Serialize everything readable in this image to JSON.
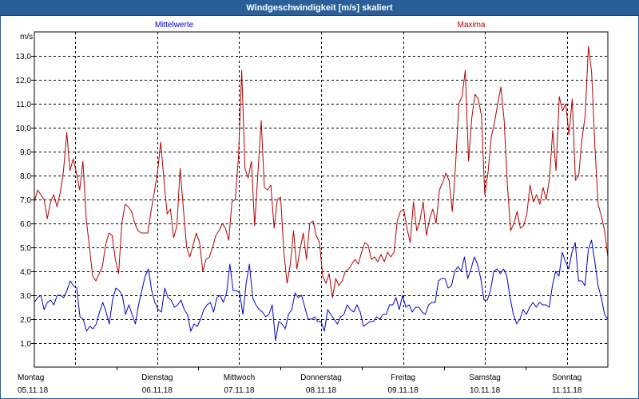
{
  "window": {
    "title": "Windgeschwindigkeit [m/s] skaliert"
  },
  "chart_data": {
    "type": "line",
    "ylabel": "m/s",
    "ylim": [
      0,
      14
    ],
    "yticks": [
      1.0,
      2.0,
      3.0,
      4.0,
      5.0,
      6.0,
      7.0,
      8.0,
      9.0,
      10.0,
      11.0,
      12.0,
      13.0
    ],
    "ytick_labels": [
      "1,0",
      "2,0",
      "3,0",
      "4,0",
      "5,0",
      "6,0",
      "7,0",
      "8,0",
      "9,0",
      "10,0",
      "11,0",
      "12,0",
      "13,0"
    ],
    "day_labels": [
      {
        "day": "Montag",
        "date": "05.11.18"
      },
      {
        "day": "Dienstag",
        "date": "06.11.18"
      },
      {
        "day": "Mittwoch",
        "date": "07.11.18"
      },
      {
        "day": "Donnerstag",
        "date": "08.11.18"
      },
      {
        "day": "Freitag",
        "date": "09.11.18"
      },
      {
        "day": "Samstag",
        "date": "10.11.18"
      },
      {
        "day": "Sonntag",
        "date": "11.11.18"
      }
    ],
    "grid": true,
    "legend_placement": "top",
    "series": [
      {
        "name": "Mittelwerte",
        "color": "#0000cc",
        "values": [
          2.7,
          2.9,
          3.0,
          2.4,
          2.7,
          2.8,
          2.6,
          3.0,
          3.0,
          2.9,
          3.2,
          3.6,
          3.4,
          3.3,
          2.1,
          2.0,
          1.5,
          1.7,
          1.6,
          1.8,
          2.3,
          2.7,
          2.3,
          1.8,
          2.8,
          3.3,
          3.2,
          3.0,
          2.2,
          2.6,
          2.2,
          1.8,
          2.6,
          3.2,
          3.8,
          4.1,
          3.2,
          2.7,
          2.4,
          2.3,
          3.3,
          2.9,
          2.8,
          2.5,
          2.6,
          2.8,
          2.4,
          2.2,
          1.5,
          1.8,
          1.7,
          2.0,
          2.4,
          2.6,
          2.7,
          2.3,
          2.9,
          3.0,
          2.7,
          3.1,
          4.3,
          3.2,
          3.2,
          3.1,
          2.2,
          3.5,
          4.3,
          2.9,
          2.6,
          2.4,
          2.3,
          2.1,
          2.2,
          2.6,
          1.1,
          1.9,
          1.8,
          1.6,
          2.2,
          2.4,
          3.1,
          2.9,
          3.0,
          2.5,
          2.0,
          2.0,
          2.1,
          1.9,
          1.9,
          1.5,
          2.4,
          2.2,
          2.0,
          1.8,
          2.1,
          2.2,
          2.6,
          2.4,
          2.3,
          2.6,
          2.3,
          1.7,
          1.8,
          1.9,
          1.9,
          2.1,
          2.0,
          2.2,
          2.2,
          2.6,
          2.6,
          2.9,
          2.4,
          3.0,
          2.5,
          2.6,
          2.3,
          2.5,
          2.5,
          2.3,
          2.2,
          2.6,
          2.7,
          2.7,
          3.6,
          3.7,
          3.7,
          3.3,
          3.4,
          4.0,
          4.2,
          4.0,
          4.6,
          3.7,
          4.1,
          4.6,
          4.3,
          3.7,
          2.8,
          2.8,
          3.2,
          4.0,
          4.1,
          3.9,
          4.1,
          3.8,
          2.9,
          2.2,
          1.8,
          2.0,
          2.4,
          2.2,
          2.5,
          2.7,
          2.5,
          2.7,
          2.6,
          2.6,
          2.5,
          3.4,
          4.0,
          3.8,
          4.8,
          4.4,
          4.1,
          4.8,
          5.2,
          3.6,
          3.6,
          3.4,
          4.9,
          5.3,
          4.4,
          3.4,
          2.9,
          2.2,
          2.0
        ]
      },
      {
        "name": "Maxima",
        "color": "#b40000",
        "values": [
          6.9,
          7.4,
          7.2,
          7.0,
          6.2,
          6.9,
          7.2,
          6.7,
          7.3,
          8.2,
          9.8,
          8.2,
          8.7,
          8.1,
          7.4,
          8.6,
          6.2,
          5.0,
          3.8,
          3.6,
          3.9,
          4.2,
          5.1,
          5.6,
          5.5,
          4.5,
          3.9,
          6.0,
          6.8,
          6.7,
          6.5,
          6.0,
          5.7,
          5.6,
          5.6,
          5.6,
          6.5,
          7.3,
          8.1,
          9.4,
          7.8,
          6.4,
          6.6,
          5.4,
          5.9,
          8.3,
          6.6,
          5.0,
          4.6,
          5.1,
          5.6,
          5.2,
          4.0,
          4.5,
          4.6,
          5.0,
          5.5,
          5.7,
          6.0,
          5.8,
          5.3,
          6.9,
          7.0,
          8.8,
          12.4,
          8.3,
          7.9,
          8.6,
          5.9,
          8.1,
          10.3,
          7.5,
          7.4,
          7.6,
          5.8,
          7.0,
          7.1,
          4.8,
          3.5,
          4.3,
          5.7,
          4.1,
          4.9,
          5.6,
          4.5,
          6.0,
          6.1,
          5.5,
          5.2,
          3.8,
          3.5,
          3.9,
          2.9,
          3.7,
          3.4,
          3.6,
          4.0,
          4.1,
          4.3,
          4.5,
          4.3,
          4.8,
          5.2,
          5.1,
          4.5,
          4.6,
          4.4,
          4.7,
          4.4,
          4.8,
          4.6,
          4.8,
          6.1,
          6.5,
          6.6,
          5.8,
          5.2,
          6.9,
          5.7,
          6.1,
          6.9,
          5.5,
          6.2,
          6.6,
          6.0,
          7.4,
          7.7,
          8.1,
          7.8,
          6.5,
          8.4,
          11.0,
          11.3,
          12.4,
          8.6,
          10.4,
          11.4,
          11.2,
          10.5,
          7.2,
          8.1,
          9.6,
          10.2,
          11.0,
          11.7,
          10.3,
          7.6,
          5.7,
          6.0,
          6.5,
          5.8,
          5.9,
          6.4,
          7.6,
          6.9,
          7.2,
          6.8,
          7.5,
          7.0,
          7.9,
          9.9,
          8.2,
          11.3,
          10.7,
          11.0,
          9.7,
          11.2,
          7.8,
          8.0,
          9.5,
          10.5,
          13.4,
          12.3,
          9.2,
          6.8,
          6.3,
          5.7,
          4.6
        ]
      }
    ]
  }
}
